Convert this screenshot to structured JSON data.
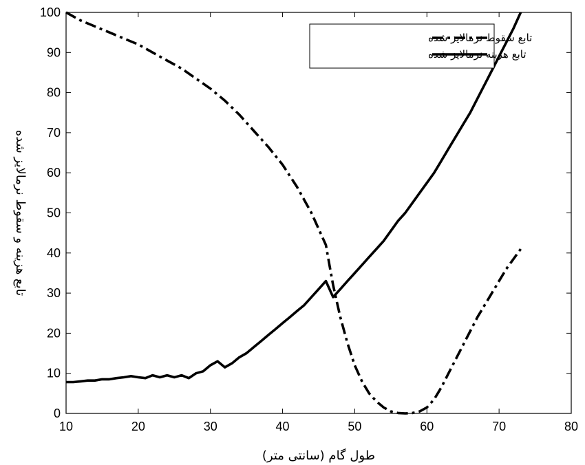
{
  "chart_data": {
    "type": "line",
    "xlabel": "طول گام (سانتی متر)",
    "ylabel": "تابع هزینه و سقوط نرمالایز شده",
    "xlim": [
      10,
      80
    ],
    "ylim": [
      0,
      100
    ],
    "xticks": [
      "10",
      "20",
      "30",
      "40",
      "50",
      "60",
      "70",
      "80"
    ],
    "yticks": [
      "0",
      "10",
      "20",
      "30",
      "40",
      "50",
      "60",
      "70",
      "80",
      "90",
      "100"
    ],
    "grid": false,
    "legend_position": "top-right",
    "series": [
      {
        "name": "تابع سقوط نرمالایز شده",
        "style": "dash-dot",
        "color": "#000000",
        "x": [
          10,
          12,
          14,
          16,
          18,
          20,
          22,
          24,
          26,
          28,
          30,
          32,
          34,
          36,
          38,
          40,
          42,
          44,
          45,
          46,
          46.5,
          47,
          47.5,
          48,
          49,
          50,
          51,
          52,
          53,
          54,
          55,
          56,
          57,
          58,
          59,
          60,
          61,
          62,
          63,
          64,
          65,
          66,
          67,
          68,
          69,
          70,
          71,
          72,
          73
        ],
        "y": [
          100,
          98,
          96.5,
          95,
          93.5,
          92,
          90,
          88,
          86,
          83.5,
          81,
          78,
          74.5,
          70.5,
          66.5,
          62,
          56.5,
          50,
          46,
          42,
          37,
          32,
          28,
          24,
          17.5,
          12,
          8,
          5,
          3,
          1.5,
          0.5,
          0.1,
          0,
          0.1,
          0.5,
          1.5,
          3.5,
          6.5,
          10,
          13.5,
          17,
          20.5,
          24,
          27,
          30,
          33,
          36,
          38.5,
          41
        ]
      },
      {
        "name": "تابع هزینه نرمالایز شده",
        "style": "solid",
        "color": "#000000",
        "x": [
          10,
          11,
          12,
          13,
          14,
          15,
          16,
          17,
          18,
          19,
          20,
          21,
          22,
          23,
          24,
          25,
          26,
          27,
          28,
          29,
          30,
          31,
          32,
          33,
          34,
          35,
          36,
          37,
          38,
          39,
          40,
          41,
          42,
          43,
          44,
          45,
          46,
          47,
          48,
          49,
          50,
          51,
          52,
          53,
          54,
          55,
          56,
          57,
          58,
          59,
          60,
          61,
          62,
          63,
          64,
          65,
          66,
          67,
          68,
          69,
          70,
          71,
          72,
          73
        ],
        "y": [
          7.8,
          7.8,
          8,
          8.2,
          8.2,
          8.5,
          8.5,
          8.8,
          9,
          9.3,
          9,
          8.8,
          9.5,
          9,
          9.5,
          9,
          9.5,
          8.8,
          10,
          10.5,
          12,
          13,
          11.5,
          12.5,
          14,
          15,
          16.5,
          18,
          19.5,
          21,
          22.5,
          24,
          25.5,
          27,
          29,
          31,
          33,
          29,
          31,
          33,
          35,
          37,
          39,
          41,
          43,
          45.5,
          48,
          50,
          52.5,
          55,
          57.5,
          60,
          63,
          66,
          69,
          72,
          75,
          78.5,
          82,
          85.5,
          89,
          92.5,
          96,
          100
        ]
      }
    ]
  }
}
